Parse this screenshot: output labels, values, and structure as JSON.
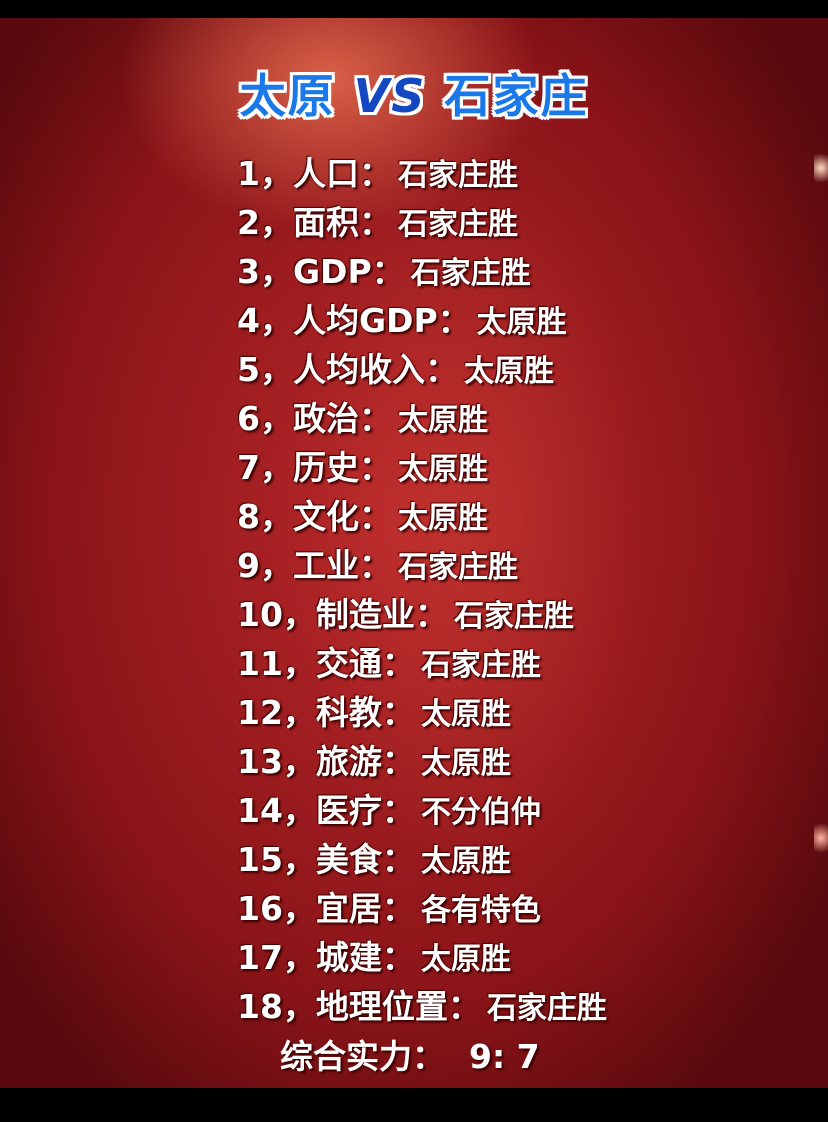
{
  "title": {
    "left": "太原",
    "vs": "VS",
    "right": "石家庄"
  },
  "items": [
    {
      "label": "1，人口：",
      "value": "石家庄胜"
    },
    {
      "label": "2，面积：",
      "value": "石家庄胜"
    },
    {
      "label": "3，GDP：",
      "value": "石家庄胜"
    },
    {
      "label": "4，人均GDP：",
      "value": "太原胜"
    },
    {
      "label": "5，人均收入：",
      "value": "太原胜"
    },
    {
      "label": "6，政治：",
      "value": "太原胜"
    },
    {
      "label": "7，历史：",
      "value": "太原胜"
    },
    {
      "label": "8，文化：",
      "value": "太原胜"
    },
    {
      "label": "9，工业：",
      "value": "石家庄胜"
    },
    {
      "label": "10，制造业：",
      "value": "石家庄胜"
    },
    {
      "label": "11，交通：",
      "value": "石家庄胜"
    },
    {
      "label": "12，科教：",
      "value": "太原胜"
    },
    {
      "label": "13，旅游：",
      "value": "太原胜"
    },
    {
      "label": "14，医疗：",
      "value": "不分伯仲"
    },
    {
      "label": "15，美食：",
      "value": "太原胜"
    },
    {
      "label": "16，宜居：",
      "value": "各有特色"
    },
    {
      "label": "17，城建：",
      "value": "太原胜"
    },
    {
      "label": "18，地理位置：",
      "value": "石家庄胜"
    }
  ],
  "summary": {
    "label": "综合实力：",
    "score": "9: 7"
  },
  "colors": {
    "title": "#1a78e8",
    "background": "#a01c20",
    "text": "#ffffff"
  }
}
